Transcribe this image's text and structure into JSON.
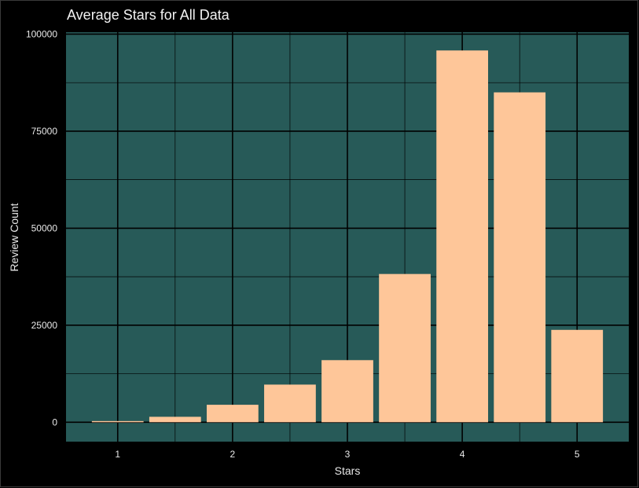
{
  "chart_data": {
    "type": "bar",
    "title": "Average Stars for All Data",
    "xlabel": "Stars",
    "ylabel": "Review Count",
    "x": [
      1.0,
      1.5,
      2.0,
      2.5,
      3.0,
      3.5,
      4.0,
      4.5,
      5.0
    ],
    "values": [
      300,
      1400,
      4500,
      9700,
      16000,
      38200,
      95800,
      85000,
      23800
    ],
    "xlim": [
      0.55,
      5.45
    ],
    "ylim": [
      -5000,
      100500
    ],
    "x_ticks": [
      1,
      2,
      3,
      4,
      5
    ],
    "y_ticks": [
      0,
      25000,
      50000,
      75000,
      100000
    ],
    "grid": true,
    "colors": {
      "background": "#000000",
      "panel": "#275a58",
      "bar": "#fec699",
      "grid": "#000000",
      "text": "#e8e8e8"
    }
  }
}
